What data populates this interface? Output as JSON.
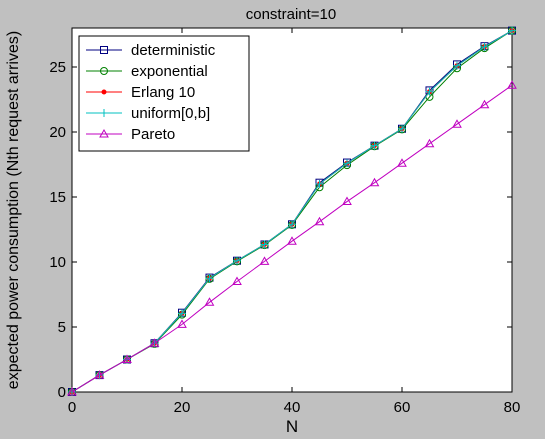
{
  "chart_data": {
    "type": "line",
    "title": "constraint=10",
    "xlabel": "N",
    "ylabel": "expected power consumption (Nth request arrives)",
    "xlim": [
      0,
      80
    ],
    "ylim": [
      0,
      28
    ],
    "x_ticks": [
      "0",
      "20",
      "40",
      "60",
      "80"
    ],
    "y_ticks": [
      "0",
      "5",
      "10",
      "15",
      "20",
      "25"
    ],
    "grid": false,
    "legend_position": "top-left",
    "x": [
      0,
      5,
      10,
      15,
      20,
      25,
      30,
      35,
      40,
      45,
      50,
      55,
      60,
      65,
      70,
      75,
      80
    ],
    "series": [
      {
        "name": "deterministic",
        "color": "#000080",
        "marker": "square",
        "values": [
          0,
          1.3,
          2.5,
          3.75,
          6.1,
          8.8,
          10.1,
          11.35,
          12.9,
          16.1,
          17.65,
          18.95,
          20.25,
          23.2,
          25.2,
          26.6,
          27.8
        ]
      },
      {
        "name": "exponential",
        "color": "#008000",
        "marker": "circle",
        "values": [
          0,
          1.3,
          2.5,
          3.7,
          5.95,
          8.7,
          10.05,
          11.3,
          12.85,
          15.75,
          17.45,
          18.9,
          20.2,
          22.7,
          24.9,
          26.45,
          27.8
        ]
      },
      {
        "name": "Erlang 10",
        "color": "#ff0000",
        "marker": "dot",
        "values": [
          0,
          1.3,
          2.5,
          3.75,
          6.05,
          8.75,
          10.1,
          11.35,
          12.9,
          16.0,
          17.6,
          18.95,
          20.25,
          23.1,
          25.1,
          26.55,
          27.8
        ]
      },
      {
        "name": "uniform[0,b]",
        "color": "#00c0c0",
        "marker": "plus",
        "values": [
          0,
          1.3,
          2.5,
          3.75,
          6.05,
          8.75,
          10.1,
          11.35,
          12.9,
          16.0,
          17.6,
          18.95,
          20.25,
          23.1,
          25.1,
          26.55,
          27.8
        ]
      },
      {
        "name": "Pareto",
        "color": "#c000c0",
        "marker": "triangle",
        "values": [
          0,
          1.3,
          2.5,
          3.75,
          5.2,
          6.9,
          8.5,
          10.05,
          11.6,
          13.1,
          14.65,
          16.1,
          17.6,
          19.1,
          20.6,
          22.1,
          23.6
        ]
      }
    ]
  }
}
